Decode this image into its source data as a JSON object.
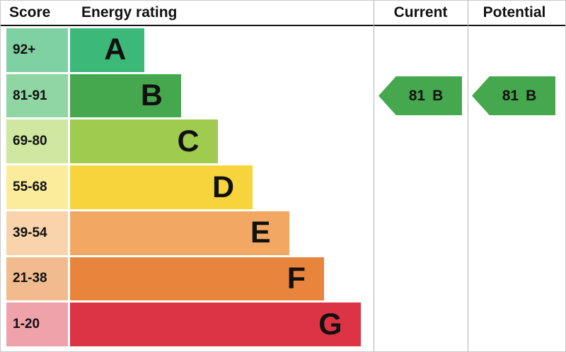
{
  "header": {
    "score": "Score",
    "energy_rating": "Energy rating",
    "current": "Current",
    "potential": "Potential"
  },
  "bands": [
    {
      "score": "92+",
      "letter": "A",
      "bar_color": "#3cb878",
      "tint_color": "#7fd0a3",
      "width_pct": 24.5
    },
    {
      "score": "81-91",
      "letter": "B",
      "bar_color": "#46a84e",
      "tint_color": "#8fd6a2",
      "width_pct": 36.5
    },
    {
      "score": "69-80",
      "letter": "C",
      "bar_color": "#9fcb4f",
      "tint_color": "#cfe7a0",
      "width_pct": 48.5
    },
    {
      "score": "55-68",
      "letter": "D",
      "bar_color": "#f8d43c",
      "tint_color": "#fbec9b",
      "width_pct": 60
    },
    {
      "score": "39-54",
      "letter": "E",
      "bar_color": "#f2a862",
      "tint_color": "#f8d3ac",
      "width_pct": 72
    },
    {
      "score": "21-38",
      "letter": "F",
      "bar_color": "#e8843c",
      "tint_color": "#f2bb8d",
      "width_pct": 83.5
    },
    {
      "score": "1-20",
      "letter": "G",
      "bar_color": "#dc3444",
      "tint_color": "#efa2aa",
      "width_pct": 95.5
    }
  ],
  "current_arrow": {
    "value": "81",
    "letter": "B",
    "color": "#46a84e"
  },
  "potential_arrow": {
    "value": "81",
    "letter": "B",
    "color": "#46a84e"
  },
  "chart_data": {
    "type": "bar",
    "title": "EPC energy rating chart",
    "columns": [
      "Score",
      "Energy rating",
      "Current",
      "Potential"
    ],
    "categories": [
      "A",
      "B",
      "C",
      "D",
      "E",
      "F",
      "G"
    ],
    "score_ranges": [
      "92+",
      "81-91",
      "69-80",
      "55-68",
      "39-54",
      "21-38",
      "1-20"
    ],
    "bar_widths_relative_pct": [
      24.5,
      36.5,
      48.5,
      60,
      72,
      83.5,
      95.5
    ],
    "band_colors": [
      "#3cb878",
      "#46a84e",
      "#9fcb4f",
      "#f8d43c",
      "#f2a862",
      "#e8843c",
      "#dc3444"
    ],
    "current": {
      "score": 81,
      "rating": "B"
    },
    "potential": {
      "score": 81,
      "rating": "B"
    },
    "legend_position": "none",
    "grid": false
  }
}
